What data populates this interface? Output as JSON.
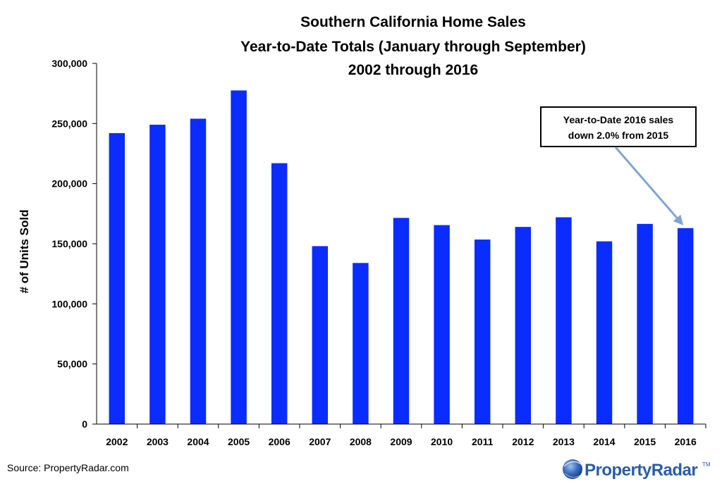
{
  "chart_data": {
    "type": "bar",
    "title": [
      "Southern California Home Sales",
      "Year-to-Date Totals (January through September)",
      "2002 through 2016"
    ],
    "ylabel": "# of Units Sold",
    "xlabel": "",
    "ylim": [
      0,
      300000
    ],
    "yticks": [
      0,
      50000,
      100000,
      150000,
      200000,
      250000,
      300000
    ],
    "ytick_labels": [
      "0",
      "50,000",
      "100,000",
      "150,000",
      "200,000",
      "250,000",
      "300,000"
    ],
    "categories": [
      "2002",
      "2003",
      "2004",
      "2005",
      "2006",
      "2007",
      "2008",
      "2009",
      "2010",
      "2011",
      "2012",
      "2013",
      "2014",
      "2015",
      "2016"
    ],
    "values": [
      242000,
      249000,
      254000,
      277500,
      217000,
      148000,
      134000,
      171500,
      165500,
      153500,
      164000,
      172000,
      152000,
      166500,
      163000
    ],
    "bar_color": "#0b2cff",
    "grid": false,
    "annotation": {
      "lines": [
        "Year-to-Date 2016 sales",
        "down 2.0% from 2015"
      ],
      "points_to": "2016"
    }
  },
  "footer": {
    "source": "Source: PropertyRadar.com",
    "logo_text": "PropertyRadar",
    "logo_mark": "TM"
  },
  "colors": {
    "bar": "#0b2cff",
    "arrow": "#7fa6d1",
    "logo_blue": "#2a5caa"
  }
}
